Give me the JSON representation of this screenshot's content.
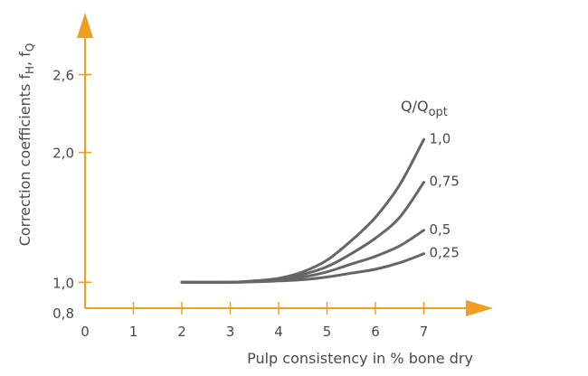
{
  "chart_data": {
    "type": "line",
    "title": "",
    "xlabel": "Pulp consistency in % bone dry",
    "ylabel": {
      "base": "Correction coefficients f",
      "sub1": "H",
      "mid": ", f",
      "sub2": "Q"
    },
    "legend_title": {
      "base": "Q/Q",
      "sub": "opt"
    },
    "xlim": [
      0,
      7.8
    ],
    "ylim": [
      0.8,
      2.95
    ],
    "x_ticks": [
      0,
      1,
      2,
      3,
      4,
      5,
      6,
      7
    ],
    "x_tick_labels": [
      "0",
      "1",
      "2",
      "3",
      "4",
      "5",
      "6",
      "7"
    ],
    "y_ticks": [
      0.8,
      1.0,
      2.0,
      2.6
    ],
    "y_tick_labels": [
      "0,8",
      "1,0",
      "2,0",
      "2,6"
    ],
    "axis_color": "#f0a020",
    "series": [
      {
        "name": "1,0",
        "x": [
          2,
          3,
          3.5,
          4,
          4.5,
          5,
          5.5,
          6,
          6.5,
          7
        ],
        "y": [
          1.0,
          1.0,
          1.01,
          1.03,
          1.08,
          1.17,
          1.32,
          1.5,
          1.75,
          2.1
        ]
      },
      {
        "name": "0,75",
        "x": [
          2,
          3,
          3.5,
          4,
          4.5,
          5,
          5.5,
          6,
          6.5,
          7
        ],
        "y": [
          1.0,
          1.0,
          1.01,
          1.02,
          1.06,
          1.12,
          1.22,
          1.34,
          1.5,
          1.77
        ]
      },
      {
        "name": "0,5",
        "x": [
          2,
          3,
          3.5,
          4,
          4.5,
          5,
          5.5,
          6,
          6.5,
          7
        ],
        "y": [
          1.0,
          1.0,
          1.005,
          1.015,
          1.04,
          1.08,
          1.14,
          1.2,
          1.28,
          1.4
        ]
      },
      {
        "name": "0,25",
        "x": [
          2,
          3,
          3.5,
          4,
          4.5,
          5,
          5.5,
          6,
          6.5,
          7
        ],
        "y": [
          1.0,
          1.0,
          1.003,
          1.01,
          1.02,
          1.04,
          1.07,
          1.1,
          1.15,
          1.22
        ]
      }
    ]
  }
}
